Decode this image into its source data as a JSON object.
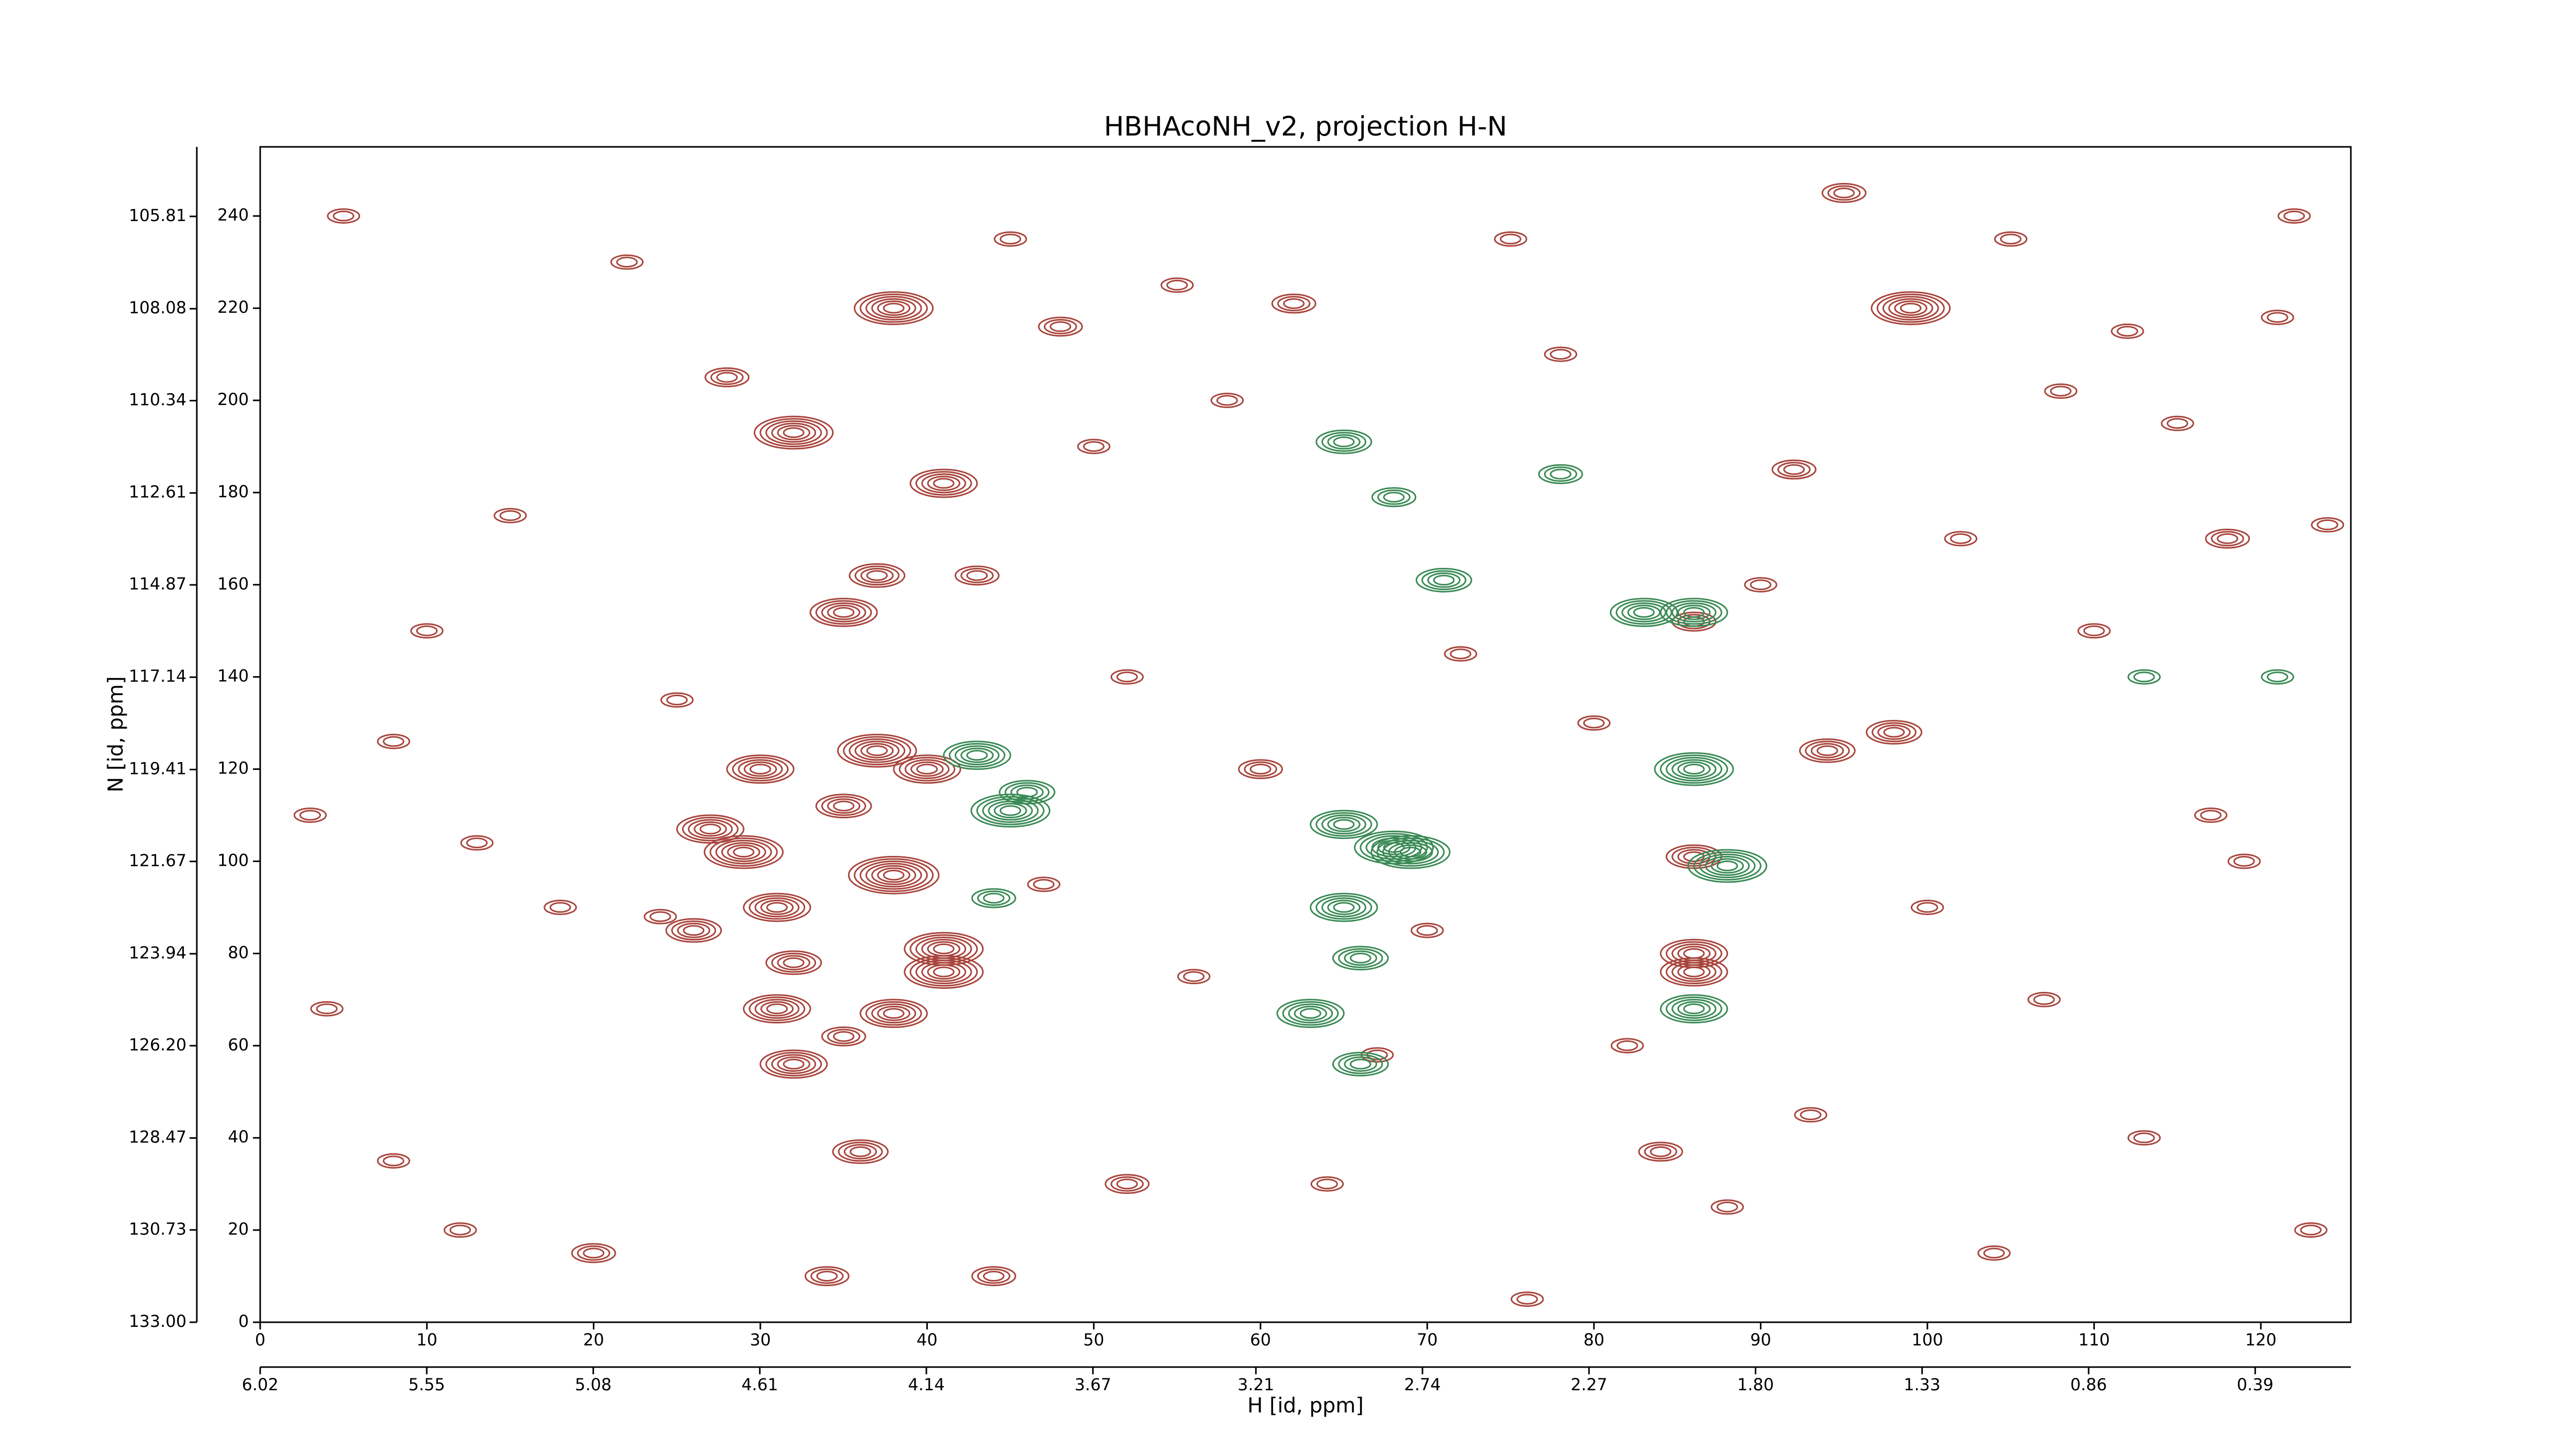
{
  "chart_data": {
    "type": "contour",
    "title": "HBHAcoNH_v2, projection H-N",
    "xlabel": "H [id, ppm]",
    "ylabel": "N [id, ppm]",
    "xlim": [
      0,
      125.4
    ],
    "ylim": [
      0,
      255
    ],
    "xticks": [
      0,
      10,
      20,
      30,
      40,
      50,
      60,
      70,
      80,
      90,
      100,
      110,
      120
    ],
    "yticks": [
      0,
      20,
      40,
      60,
      80,
      100,
      120,
      140,
      160,
      180,
      200,
      220,
      240
    ],
    "x2lim": [
      6.02,
      0.12
    ],
    "x2ticks": [
      6.02,
      5.55,
      5.08,
      4.61,
      4.14,
      3.67,
      3.21,
      2.74,
      2.27,
      {
        "value": 1.8,
        "label": "1.80"
      },
      1.33,
      0.86,
      0.39
    ],
    "y2lim": [
      133,
      104.1
    ],
    "y2ticks": [
      {
        "value": 133,
        "label": "133.00"
      },
      130.73,
      128.47,
      {
        "value": 126.2,
        "label": "126.20"
      },
      123.94,
      121.67,
      119.41,
      117.14,
      114.87,
      112.61,
      110.34,
      108.08,
      105.81
    ],
    "series": [
      {
        "color": "#a8443c",
        "x": [
          38,
          99,
          32,
          41,
          35,
          37,
          43,
          86,
          98,
          94,
          37,
          30,
          40,
          27,
          29,
          38,
          31,
          26,
          41,
          41,
          32,
          31,
          38,
          32,
          35,
          35,
          86,
          86,
          86,
          13,
          18,
          48,
          92,
          62,
          36,
          20,
          84,
          8,
          24,
          4,
          108,
          118,
          121,
          124,
          60,
          8,
          67,
          5,
          22,
          28,
          45,
          55,
          58,
          75,
          78,
          95,
          105,
          112,
          115,
          122,
          10,
          15,
          50,
          52,
          72,
          80,
          90,
          102,
          110,
          117,
          3,
          25,
          47,
          56,
          70,
          82,
          93,
          100,
          107,
          119,
          12,
          44,
          64,
          76,
          88,
          104,
          113,
          123,
          52,
          34
        ],
        "y": [
          220,
          220,
          193,
          182,
          154,
          162,
          162,
          152,
          128,
          124,
          124,
          120,
          120,
          107,
          102,
          97,
          90,
          85,
          81,
          76,
          78,
          68,
          67,
          56,
          62,
          112,
          101,
          80,
          76,
          104,
          90,
          216,
          185,
          221,
          37,
          15,
          37,
          126,
          88,
          68,
          202,
          170,
          218,
          173,
          120,
          35,
          58,
          240,
          230,
          205,
          235,
          225,
          200,
          235,
          210,
          245,
          235,
          215,
          195,
          240,
          150,
          175,
          190,
          140,
          145,
          130,
          160,
          170,
          150,
          110,
          110,
          135,
          95,
          75,
          85,
          60,
          45,
          90,
          70,
          100,
          20,
          10,
          30,
          5,
          25,
          15,
          40,
          20,
          30,
          10
        ],
        "levels": [
          6,
          6,
          6,
          5,
          5,
          4,
          3,
          3,
          4,
          4,
          6,
          5,
          5,
          5,
          6,
          7,
          5,
          4,
          6,
          6,
          4,
          5,
          5,
          5,
          3,
          4,
          4,
          5,
          5,
          2,
          2,
          3,
          3,
          3,
          4,
          3,
          3,
          2,
          2,
          2,
          2,
          3,
          2,
          2,
          3,
          2,
          2,
          2,
          2,
          3,
          2,
          2,
          2,
          2,
          2,
          3,
          2,
          2,
          2,
          2,
          2,
          2,
          2,
          2,
          2,
          2,
          2,
          2,
          2,
          2,
          2,
          2,
          2,
          2,
          2,
          2,
          2,
          2,
          2,
          2,
          2,
          3,
          2,
          2,
          2,
          2,
          2,
          2,
          3,
          3
        ]
      },
      {
        "color": "#3a8a55",
        "x": [
          65,
          68,
          78,
          71,
          83,
          86,
          43,
          46,
          45,
          44,
          65,
          68,
          69,
          65,
          63,
          66,
          66,
          86,
          88,
          86,
          113,
          121
        ],
        "y": [
          191,
          179,
          184,
          161,
          154,
          154,
          123,
          115,
          111,
          92,
          108,
          103,
          102,
          90,
          67,
          79,
          56,
          120,
          99,
          68,
          140,
          140
        ],
        "levels": [
          4,
          3,
          3,
          4,
          5,
          5,
          5,
          4,
          6,
          3,
          5,
          6,
          6,
          5,
          5,
          4,
          4,
          6,
          6,
          5,
          2,
          2
        ]
      }
    ]
  }
}
